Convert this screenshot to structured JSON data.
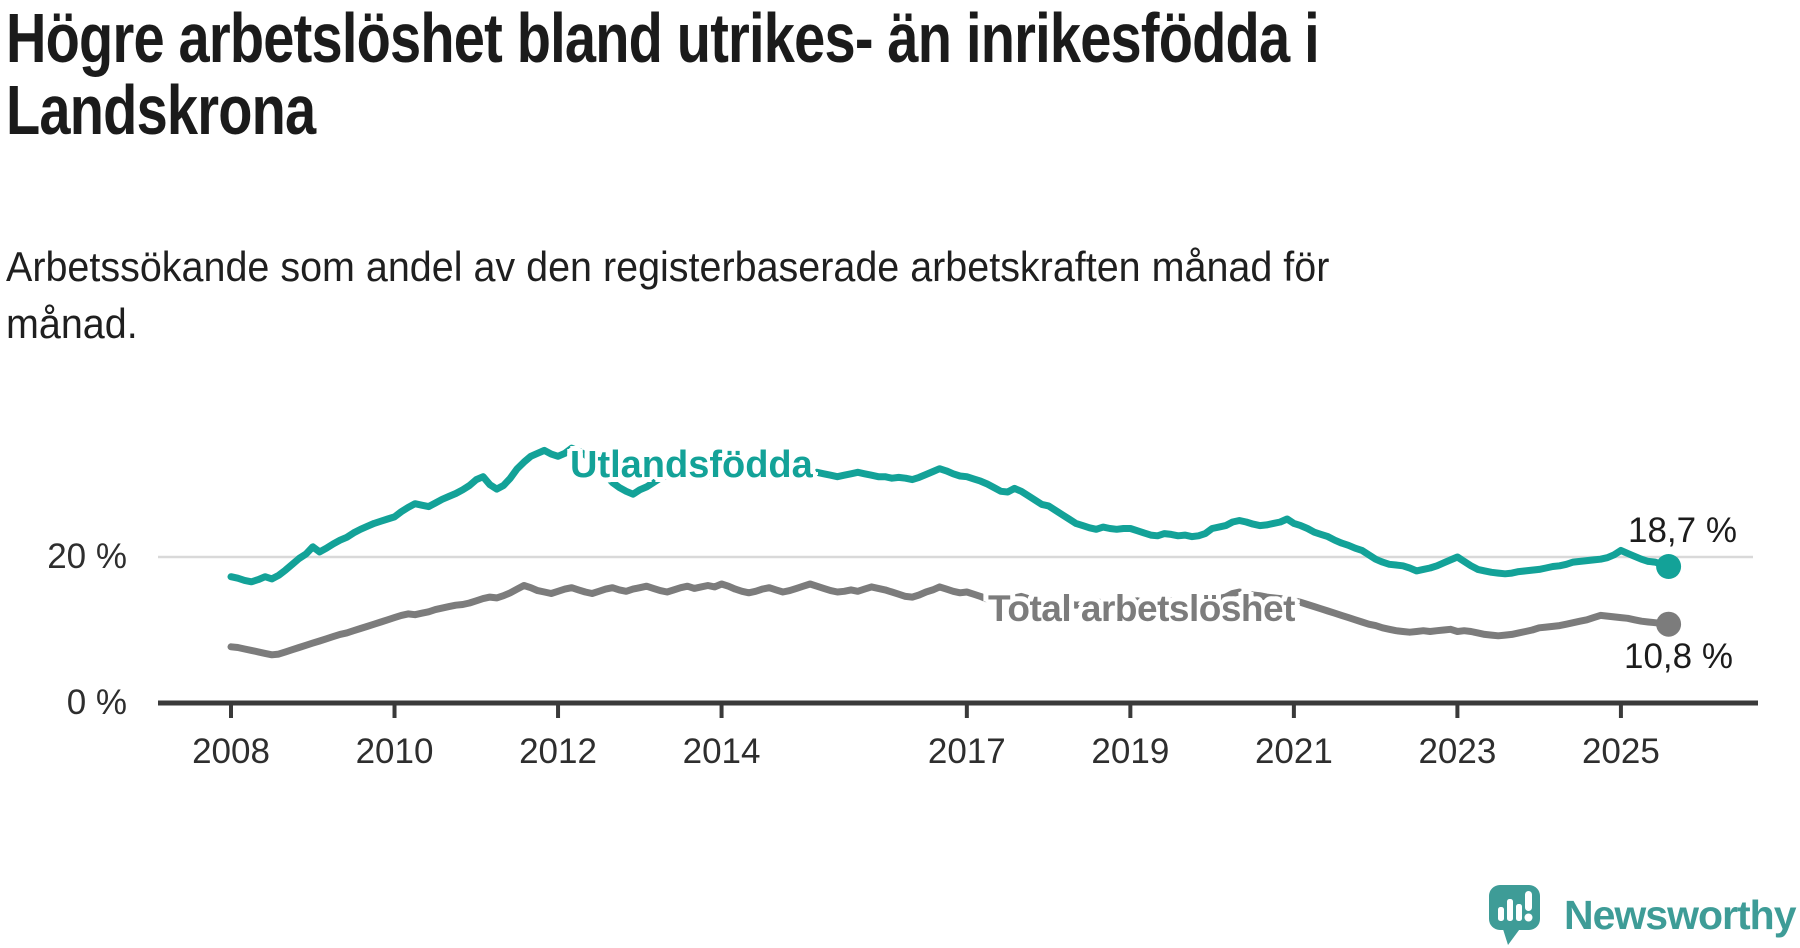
{
  "header": {
    "title_lines": [
      "Högre arbetslöshet bland utrikes- än inrikesfödda i",
      "Landskrona"
    ],
    "subtitle_lines": [
      "Arbetssökande som andel av den registerbaserade arbetskraften månad för",
      "månad."
    ]
  },
  "chart_data": {
    "type": "line",
    "unit": "%",
    "x_start_year": 2008,
    "x_interval": "monthly",
    "x_end": "2025-08",
    "x_tick_labels": [
      "2008",
      "2010",
      "2012",
      "2014",
      "2017",
      "2019",
      "2021",
      "2023",
      "2025"
    ],
    "x_tick_years": [
      2008,
      2010,
      2012,
      2014,
      2017,
      2019,
      2021,
      2023,
      2025
    ],
    "y_ticks": [
      {
        "value": 0,
        "label": "0 %"
      },
      {
        "value": 20,
        "label": "20 %"
      }
    ],
    "ylim": [
      0,
      47
    ],
    "grid": "single horizontal gridline at 20%",
    "legend_position": "labels on lines",
    "colors": {
      "axis": "#3a3a3a",
      "gridline": "#d9d9d9",
      "tick_text": "#2e2e2e"
    },
    "series": [
      {
        "name": "Utlandsfödda",
        "color": "#13a298",
        "end_label": "18,7 %",
        "end_value": 18.7,
        "values": [
          17.3,
          17.1,
          16.8,
          16.6,
          16.9,
          17.3,
          17.0,
          17.5,
          18.2,
          19.0,
          19.8,
          20.4,
          21.4,
          20.7,
          21.2,
          21.8,
          22.3,
          22.7,
          23.3,
          23.8,
          24.2,
          24.6,
          24.9,
          25.2,
          25.5,
          26.2,
          26.8,
          27.3,
          27.1,
          26.9,
          27.4,
          27.9,
          28.3,
          28.7,
          29.2,
          29.8,
          30.6,
          31.0,
          29.9,
          29.3,
          29.8,
          30.8,
          32.1,
          33.0,
          33.8,
          34.2,
          34.6,
          34.1,
          33.8,
          34.2,
          34.9,
          34.5,
          34.0,
          33.2,
          32.2,
          31.2,
          30.2,
          29.5,
          29.0,
          28.6,
          29.2,
          29.6,
          30.2,
          30.8,
          31.2,
          31.5,
          31.8,
          32.0,
          31.7,
          31.4,
          31.2,
          31.0,
          31.2,
          31.5,
          31.8,
          32.0,
          31.8,
          31.5,
          31.8,
          32.0,
          31.7,
          31.4,
          31.2,
          31.0,
          31.2,
          31.4,
          31.6,
          31.4,
          31.2,
          31.0,
          31.2,
          31.4,
          31.6,
          31.4,
          31.2,
          31.0,
          31.0,
          30.8,
          30.9,
          30.8,
          30.6,
          30.9,
          31.3,
          31.7,
          32.1,
          31.8,
          31.4,
          31.1,
          31.0,
          30.7,
          30.4,
          30.0,
          29.5,
          29.0,
          28.9,
          29.4,
          29.0,
          28.4,
          27.8,
          27.2,
          27.0,
          26.4,
          25.8,
          25.2,
          24.6,
          24.3,
          24.0,
          23.8,
          24.1,
          23.9,
          23.8,
          23.9,
          23.9,
          23.6,
          23.3,
          23.0,
          22.9,
          23.2,
          23.1,
          22.9,
          23.0,
          22.8,
          22.9,
          23.2,
          23.9,
          24.1,
          24.3,
          24.8,
          25.0,
          24.8,
          24.5,
          24.3,
          24.4,
          24.6,
          24.8,
          25.2,
          24.6,
          24.3,
          23.9,
          23.4,
          23.1,
          22.8,
          22.3,
          21.9,
          21.6,
          21.2,
          20.9,
          20.3,
          19.7,
          19.3,
          19.0,
          18.9,
          18.8,
          18.5,
          18.1,
          18.3,
          18.5,
          18.8,
          19.2,
          19.6,
          20.0,
          19.4,
          18.8,
          18.3,
          18.1,
          17.9,
          17.8,
          17.7,
          17.8,
          18.0,
          18.1,
          18.2,
          18.3,
          18.5,
          18.7,
          18.8,
          19.0,
          19.3,
          19.4,
          19.5,
          19.6,
          19.7,
          19.9,
          20.3,
          20.9,
          20.5,
          20.1,
          19.7,
          19.4,
          19.3,
          19.0,
          18.7
        ]
      },
      {
        "name": "Total arbetslöshet",
        "color": "#7c7c7c",
        "end_label": "10,8 %",
        "end_value": 10.8,
        "values": [
          7.7,
          7.6,
          7.4,
          7.2,
          7.0,
          6.8,
          6.6,
          6.7,
          7.0,
          7.3,
          7.6,
          7.9,
          8.2,
          8.5,
          8.8,
          9.1,
          9.4,
          9.6,
          9.9,
          10.2,
          10.5,
          10.8,
          11.1,
          11.4,
          11.7,
          12.0,
          12.2,
          12.1,
          12.3,
          12.5,
          12.8,
          13.0,
          13.2,
          13.4,
          13.5,
          13.7,
          14.0,
          14.3,
          14.5,
          14.4,
          14.7,
          15.1,
          15.6,
          16.1,
          15.8,
          15.4,
          15.2,
          15.0,
          15.3,
          15.6,
          15.8,
          15.5,
          15.2,
          15.0,
          15.3,
          15.6,
          15.8,
          15.5,
          15.3,
          15.6,
          15.8,
          16.0,
          15.7,
          15.4,
          15.2,
          15.5,
          15.8,
          16.0,
          15.7,
          15.9,
          16.1,
          15.9,
          16.3,
          16.0,
          15.6,
          15.3,
          15.1,
          15.3,
          15.6,
          15.8,
          15.5,
          15.2,
          15.4,
          15.7,
          16.0,
          16.3,
          16.0,
          15.7,
          15.4,
          15.2,
          15.3,
          15.5,
          15.3,
          15.6,
          15.9,
          15.7,
          15.5,
          15.2,
          14.9,
          14.6,
          14.5,
          14.8,
          15.2,
          15.5,
          15.9,
          15.6,
          15.3,
          15.1,
          15.2,
          14.9,
          14.6,
          14.2,
          13.9,
          13.8,
          14.1,
          14.4,
          14.6,
          14.3,
          14.0,
          13.8,
          13.9,
          13.7,
          13.5,
          13.6,
          13.4,
          13.5,
          13.7,
          13.9,
          13.7,
          13.5,
          13.6,
          13.8,
          13.9,
          14.0,
          13.8,
          13.9,
          13.7,
          13.8,
          14.0,
          13.9,
          13.7,
          13.8,
          13.9,
          14.0,
          14.2,
          14.3,
          14.5,
          15.0,
          15.2,
          15.0,
          14.8,
          14.7,
          14.5,
          14.4,
          14.3,
          14.2,
          14.0,
          13.8,
          13.5,
          13.2,
          12.9,
          12.6,
          12.3,
          12.0,
          11.7,
          11.4,
          11.1,
          10.8,
          10.6,
          10.3,
          10.1,
          9.9,
          9.8,
          9.7,
          9.8,
          9.9,
          9.8,
          9.9,
          10.0,
          10.1,
          9.8,
          9.9,
          9.8,
          9.6,
          9.4,
          9.3,
          9.2,
          9.3,
          9.4,
          9.6,
          9.8,
          10.0,
          10.3,
          10.4,
          10.5,
          10.6,
          10.8,
          11.0,
          11.2,
          11.4,
          11.7,
          12.0,
          11.9,
          11.8,
          11.7,
          11.6,
          11.4,
          11.2,
          11.1,
          11.0,
          10.9,
          10.8
        ]
      }
    ]
  },
  "branding": {
    "logo_text": "Newsworthy",
    "logo_color": "#3e9c97"
  }
}
